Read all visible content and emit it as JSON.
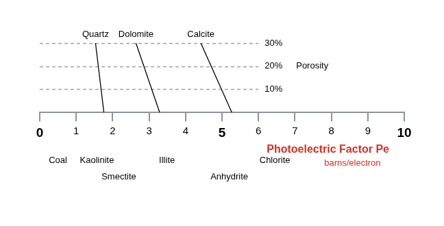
{
  "chart_data": {
    "type": "line",
    "x_label": "Photoelectric Factor Pe",
    "x_unit": "barns/electron",
    "y_label": "Porosity",
    "xlim": [
      0,
      10
    ],
    "xticks": [
      0,
      1,
      2,
      3,
      4,
      5,
      6,
      7,
      8,
      9,
      10
    ],
    "ylim": [
      0,
      30
    ],
    "yticks": [
      {
        "value": 10,
        "label": "10%"
      },
      {
        "value": 20,
        "label": "20%"
      },
      {
        "value": 30,
        "label": "30%"
      }
    ],
    "grid": true,
    "legend": false,
    "series": [
      {
        "name": "Quartz",
        "color": "#000000",
        "x": [
          1.76,
          1.53
        ],
        "values": [
          0,
          30
        ]
      },
      {
        "name": "Dolomite",
        "color": "#000000",
        "x": [
          3.29,
          2.64
        ],
        "values": [
          0,
          30
        ]
      },
      {
        "name": "Calcite",
        "color": "#000000",
        "x": [
          5.27,
          4.42
        ],
        "values": [
          0,
          30
        ]
      }
    ],
    "annotations": [
      {
        "text": "Coal",
        "x": 0.5
      },
      {
        "text": "Kaolinite",
        "x": 1.57
      },
      {
        "text": "Smectite",
        "x": 2.17
      },
      {
        "text": "Illite",
        "x": 3.49
      },
      {
        "text": "Anhydrite",
        "x": 5.2
      },
      {
        "text": "Chlorite",
        "x": 6.45
      }
    ]
  }
}
